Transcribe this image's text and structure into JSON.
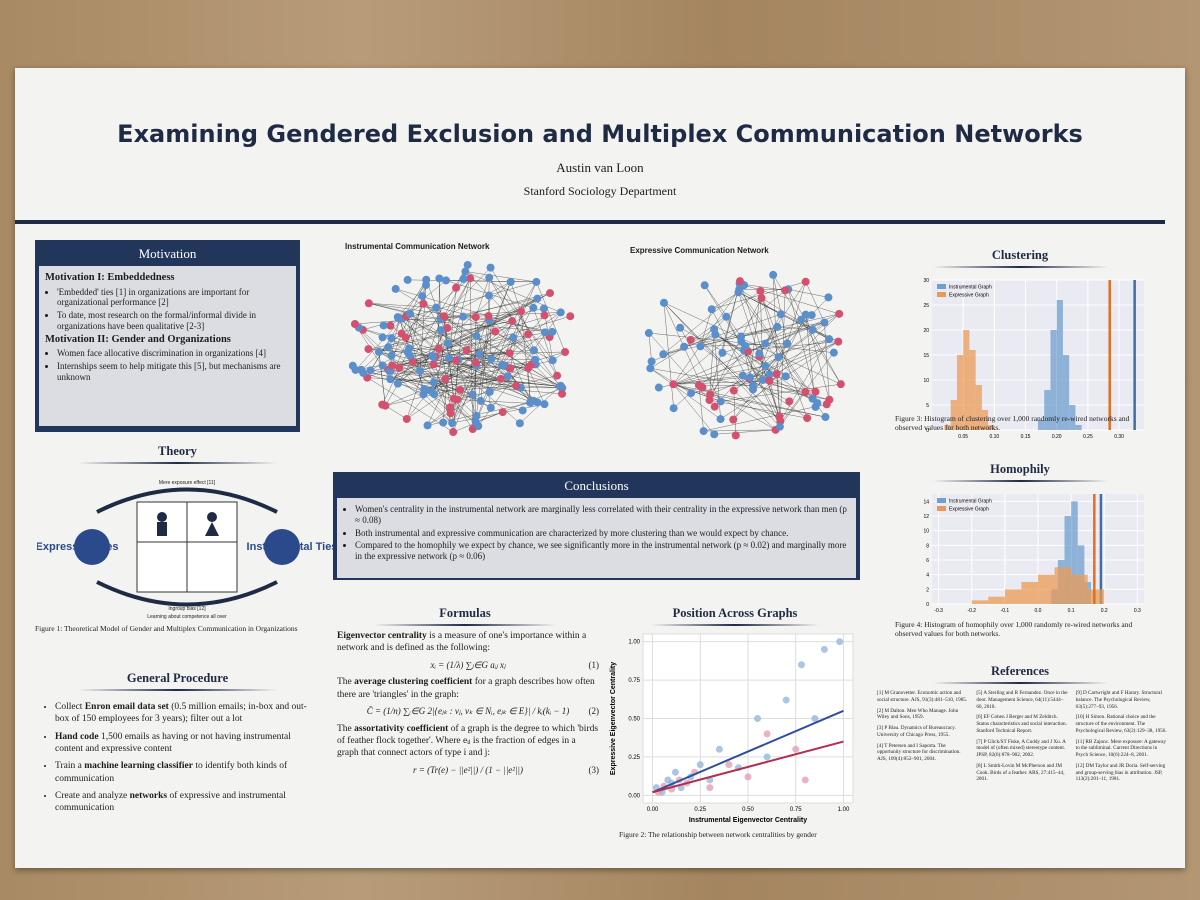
{
  "header": {
    "title": "Examining Gendered Exclusion and Multiplex Communication Networks",
    "author": "Austin van Loon",
    "affiliation": "Stanford Sociology Department"
  },
  "motivation": {
    "heading": "Motivation",
    "sections": [
      {
        "title": "Motivation I: Embeddedness",
        "bullets": [
          "'Embedded' ties [1] in organizations are important for organizational performance [2]",
          "To date, most research on the formal/informal divide in organizations have been qualitative [2-3]"
        ]
      },
      {
        "title": "Motivation II: Gender and Organizations",
        "bullets": [
          "Women face allocative discrimination in organizations [4]",
          "Internships seem to help mitigate this [5], but mechanisms are unknown"
        ]
      }
    ]
  },
  "theory": {
    "heading": "Theory",
    "labels": [
      "Expressive Ties",
      "Instrumental Ties",
      "Mere exposure effect [11]",
      "Ingroup bias [12]",
      "Learning about competence all over"
    ],
    "caption": "Figure 1: Theoretical Model of Gender and Multiplex Communication in Organizations"
  },
  "procedure": {
    "heading": "General Procedure",
    "bullets": [
      [
        {
          "text": "Collect ",
          "bold": false
        },
        {
          "text": "Enron email data set",
          "bold": true
        },
        {
          "text": " (0.5 million emails; in-box and out-box of 150 employees for 3 years); filter out a lot",
          "bold": false
        }
      ],
      [
        {
          "text": "Hand code",
          "bold": true
        },
        {
          "text": " 1,500 emails as having or not having instrumental content and expressive content",
          "bold": false
        }
      ],
      [
        {
          "text": "Train a ",
          "bold": false
        },
        {
          "text": "machine learning classifier",
          "bold": true
        },
        {
          "text": " to identify both kinds of communication",
          "bold": false
        }
      ],
      [
        {
          "text": "Create and analyze ",
          "bold": false
        },
        {
          "text": "networks",
          "bold": true
        },
        {
          "text": " of expressive and instrumental communication",
          "bold": false
        }
      ]
    ]
  },
  "networks": [
    {
      "title": "Instrumental Communication Network"
    },
    {
      "title": "Expressive Communication Network"
    }
  ],
  "conclusions": {
    "heading": "Conclusions",
    "bullets": [
      "Women's centrality in the instrumental network are marginally less correlated with their centrality in the expressive network than men (p ≈ 0.08)",
      "Both instrumental and expressive communication are characterized by more clustering than we would expect by chance.",
      "Compared to the homophily we expect by chance, we see significantly more in the instrumental network (p ≈ 0.02) and marginally more in the expressive network (p ≈ 0.06)"
    ]
  },
  "formulas": {
    "heading": "Formulas",
    "items": [
      {
        "segments": [
          {
            "text": "Eigenvector centrality",
            "bold": true
          },
          {
            "text": " is a measure of one's importance within a network and is defined as the following:",
            "bold": false
          }
        ],
        "equation": "xᵢ = (1/λ) ∑ⱼ∈G aᵢⱼ xⱼ",
        "number": "(1)"
      },
      {
        "segments": [
          {
            "text": "The ",
            "bold": false
          },
          {
            "text": "average clustering coefficient",
            "bold": true
          },
          {
            "text": " for a graph describes how often there are 'triangles' in the graph:",
            "bold": false
          }
        ],
        "equation": "C̄ = (1/n) ∑ᵢ∈G 2|{eⱼₖ : vⱼ, vₖ ∈ Nᵢ, eⱼₖ ∈ E}| / kᵢ(kᵢ − 1)",
        "number": "(2)"
      },
      {
        "segments": [
          {
            "text": "The ",
            "bold": false
          },
          {
            "text": "assortativity coefficient",
            "bold": true
          },
          {
            "text": " of a graph is the degree to which 'birds of feather flock together'. Where eᵢⱼ is the fraction of edges in a graph that connect actors of type i and j:",
            "bold": false
          }
        ],
        "equation": "r = (Tr(e) − ||e²||) / (1 − ||e²||)",
        "number": "(3)"
      }
    ]
  },
  "clustering": {
    "heading": "Clustering",
    "caption": "Figure 3: Histogram of clustering over 1,000 randomly re-wired networks and observed values for both networks.",
    "xlim": [
      0,
      0.34
    ],
    "ylim": [
      0,
      30
    ],
    "xticks": [
      0.05,
      {
        "value": 0.1,
        "label": "0.10"
      },
      0.15,
      {
        "value": 0.2,
        "label": "0.20"
      },
      0.25,
      {
        "value": 0.3,
        "label": "0.30"
      }
    ],
    "yticks": [
      0,
      5,
      10,
      15,
      20,
      25,
      30
    ],
    "series": [
      {
        "name": "Instrumental Graph",
        "color": "#6f9fce",
        "line_color": "#3e6ea5",
        "bins": [
          0.17,
          0.18,
          0.19,
          0.2,
          0.21,
          0.22,
          0.23,
          0.24
        ],
        "counts": [
          2,
          8,
          20,
          26,
          15,
          5,
          1
        ],
        "observed": 0.325
      },
      {
        "name": "Expressive Graph",
        "color": "#eb9a55",
        "line_color": "#e07020",
        "bins": [
          0.02,
          0.03,
          0.04,
          0.05,
          0.06,
          0.07,
          0.08,
          0.09,
          0.1
        ],
        "counts": [
          1,
          6,
          15,
          20,
          16,
          9,
          4,
          1
        ],
        "observed": 0.285
      }
    ]
  },
  "homophily": {
    "heading": "Homophily",
    "caption": "Figure 4: Histogram of homophily over 1,000 randomly re-wired networks and observed values for both networks.",
    "xlim": [
      -0.32,
      0.32
    ],
    "ylim": [
      0,
      15
    ],
    "xticks": [
      -0.3,
      -0.2,
      -0.1,
      {
        "value": 0,
        "label": "0.0"
      },
      0.1,
      0.2,
      0.3
    ],
    "yticks": [
      0,
      2,
      4,
      6,
      8,
      10,
      12,
      14
    ],
    "series": [
      {
        "name": "Instrumental Graph",
        "color": "#6f9fce",
        "line_color": "#3e6ea5",
        "bins": [
          0.04,
          0.06,
          0.08,
          0.1,
          0.12,
          0.14,
          0.16
        ],
        "counts": [
          2,
          6,
          12,
          14,
          8,
          3
        ],
        "observed": 0.19
      },
      {
        "name": "Expressive Graph",
        "color": "#eb9a55",
        "line_color": "#e07020",
        "bins": [
          -0.2,
          -0.15,
          -0.1,
          -0.05,
          0,
          0.05,
          0.1,
          0.15,
          0.2
        ],
        "counts": [
          0.5,
          1,
          2,
          3,
          4,
          5,
          4,
          2
        ],
        "observed": 0.17
      }
    ]
  },
  "position": {
    "heading": "Position Across Graphs",
    "caption": "Figure 2: The relationship between network centralities by gender",
    "x_label": "Instrumental Eigenvector Centrality",
    "y_label": "Expressive Eigenvector Centrality",
    "xlim": [
      -0.05,
      1.05
    ],
    "ylim": [
      -0.05,
      1.05
    ],
    "xticks": [
      {
        "value": 0,
        "label": "0.00"
      },
      0.25,
      {
        "value": 0.5,
        "label": "0.50"
      },
      0.75,
      {
        "value": 1,
        "label": "1.00"
      }
    ],
    "yticks": [
      {
        "value": 0,
        "label": "0.00"
      },
      0.25,
      {
        "value": 0.5,
        "label": "0.50"
      },
      0.75,
      {
        "value": 1,
        "label": "1.00"
      }
    ],
    "groups": [
      {
        "color": "#8fb3d9",
        "x": [
          0.02,
          0.05,
          0.08,
          0.1,
          0.12,
          0.15,
          0.2,
          0.25,
          0.3,
          0.35,
          0.45,
          0.55,
          0.6,
          0.7,
          0.78,
          0.85,
          0.98,
          0.9
        ],
        "y": [
          0.05,
          0.02,
          0.1,
          0.08,
          0.15,
          0.05,
          0.12,
          0.2,
          0.1,
          0.3,
          0.18,
          0.5,
          0.25,
          0.62,
          0.85,
          0.5,
          1.0,
          0.95
        ]
      },
      {
        "color": "#e39ab0",
        "x": [
          0.03,
          0.06,
          0.1,
          0.14,
          0.18,
          0.22,
          0.3,
          0.4,
          0.5,
          0.6,
          0.75,
          0.8
        ],
        "y": [
          0.02,
          0.06,
          0.04,
          0.1,
          0.08,
          0.15,
          0.05,
          0.2,
          0.12,
          0.4,
          0.3,
          0.1
        ]
      }
    ],
    "fits": [
      {
        "color": "#2f4f9a",
        "x": [
          0,
          1
        ],
        "y": [
          0.02,
          0.55
        ]
      },
      {
        "color": "#b03050",
        "x": [
          0,
          1
        ],
        "y": [
          0.02,
          0.35
        ]
      }
    ]
  },
  "references": {
    "heading": "References",
    "items": [
      "[1] M Granovetter. Economic action and social structure. AJS, 91(3):481–510, 1985.",
      "[2] M Dalton. Men Who Manage. John Wiley and Sons, 1959.",
      "[3] P Blau. Dynamics of Bureaucracy. University of Chicago Press, 1955.",
      "[4] T Petersen and I Saporta. The opportunity structure for discrimination. AJS, 109(4):852–901, 2004.",
      "[5] A Sterling and R Fernandez. Once in the door. Management Science, 64(11):5444–60, 2018.",
      "[6] EF Cohen J Berger and M Zelditch. Status characteristics and social interaction. Stanford Technical Report.",
      "[7] P Glick/ST Fiske, A Cuddy and J Xu. A model of (often mixed) stereotype content. JPSP, 82(6):878–902, 2002.",
      "[8] L Smith-Lovin M McPherson and JM Cook. Birds of a feather. ARS, 27:415–44, 2001.",
      "[9] D Cartwright and F Harary. Structural balance. The Psychological Review, 63(5):277–93, 1956.",
      "[10] H Simon. Rational choice and the structure of the environment. The Psychological Review, 63(2):129–38, 1956.",
      "[11] RB Zajonc. Mere exposure: A gateway to the subliminal. Current Directions in Psych Science, 10(6):224–8, 2001.",
      "[12] DM Taylor and JR Doria. Self-serving and group-serving bias in attribution. JSP, 113(2):201–11, 1981."
    ]
  }
}
